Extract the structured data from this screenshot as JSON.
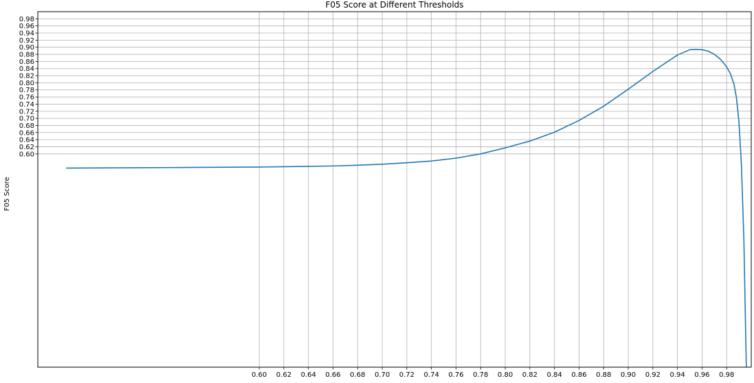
{
  "chart_data": {
    "type": "line",
    "title": "F05 Score at Different Thresholds",
    "xlabel": "",
    "ylabel": "F05 Score",
    "xlim": [
      0.42,
      1.0
    ],
    "ylim": [
      0.0,
      1.0
    ],
    "xticks": [
      0.6,
      0.62,
      0.64,
      0.66,
      0.68,
      0.7,
      0.72,
      0.74,
      0.76,
      0.78,
      0.8,
      0.82,
      0.84,
      0.86,
      0.88,
      0.9,
      0.92,
      0.94,
      0.96,
      0.98
    ],
    "xtick_labels": [
      "0.60",
      "0.62",
      "0.64",
      "0.66",
      "0.68",
      "0.70",
      "0.72",
      "0.74",
      "0.76",
      "0.78",
      "0.80",
      "0.82",
      "0.84",
      "0.86",
      "0.88",
      "0.90",
      "0.92",
      "0.94",
      "0.96",
      "0.98"
    ],
    "yticks": [
      0.6,
      0.62,
      0.64,
      0.66,
      0.68,
      0.7,
      0.72,
      0.74,
      0.76,
      0.78,
      0.8,
      0.82,
      0.84,
      0.86,
      0.88,
      0.9,
      0.92,
      0.94,
      0.96,
      0.98
    ],
    "ytick_labels": [
      "0.60",
      "0.62",
      "0.64",
      "0.66",
      "0.68",
      "0.70",
      "0.72",
      "0.74",
      "0.76",
      "0.78",
      "0.80",
      "0.82",
      "0.84",
      "0.86",
      "0.88",
      "0.90",
      "0.92",
      "0.94",
      "0.96",
      "0.98"
    ],
    "grid": true,
    "line_color": "#1f77b4",
    "series": [
      {
        "x": [
          0.443,
          0.5,
          0.55,
          0.6,
          0.62,
          0.64,
          0.66,
          0.68,
          0.7,
          0.72,
          0.74,
          0.76,
          0.78,
          0.8,
          0.82,
          0.84,
          0.86,
          0.88,
          0.9,
          0.92,
          0.94,
          0.95,
          0.955,
          0.96,
          0.965,
          0.97,
          0.975,
          0.98,
          0.983,
          0.986,
          0.988,
          0.99,
          0.992,
          0.994,
          0.996
        ],
        "y": [
          0.56,
          0.561,
          0.562,
          0.563,
          0.564,
          0.565,
          0.566,
          0.568,
          0.571,
          0.575,
          0.58,
          0.588,
          0.6,
          0.617,
          0.636,
          0.661,
          0.694,
          0.734,
          0.782,
          0.832,
          0.878,
          0.893,
          0.894,
          0.893,
          0.889,
          0.88,
          0.866,
          0.845,
          0.826,
          0.796,
          0.757,
          0.69,
          0.57,
          0.36,
          0.0
        ]
      }
    ]
  }
}
